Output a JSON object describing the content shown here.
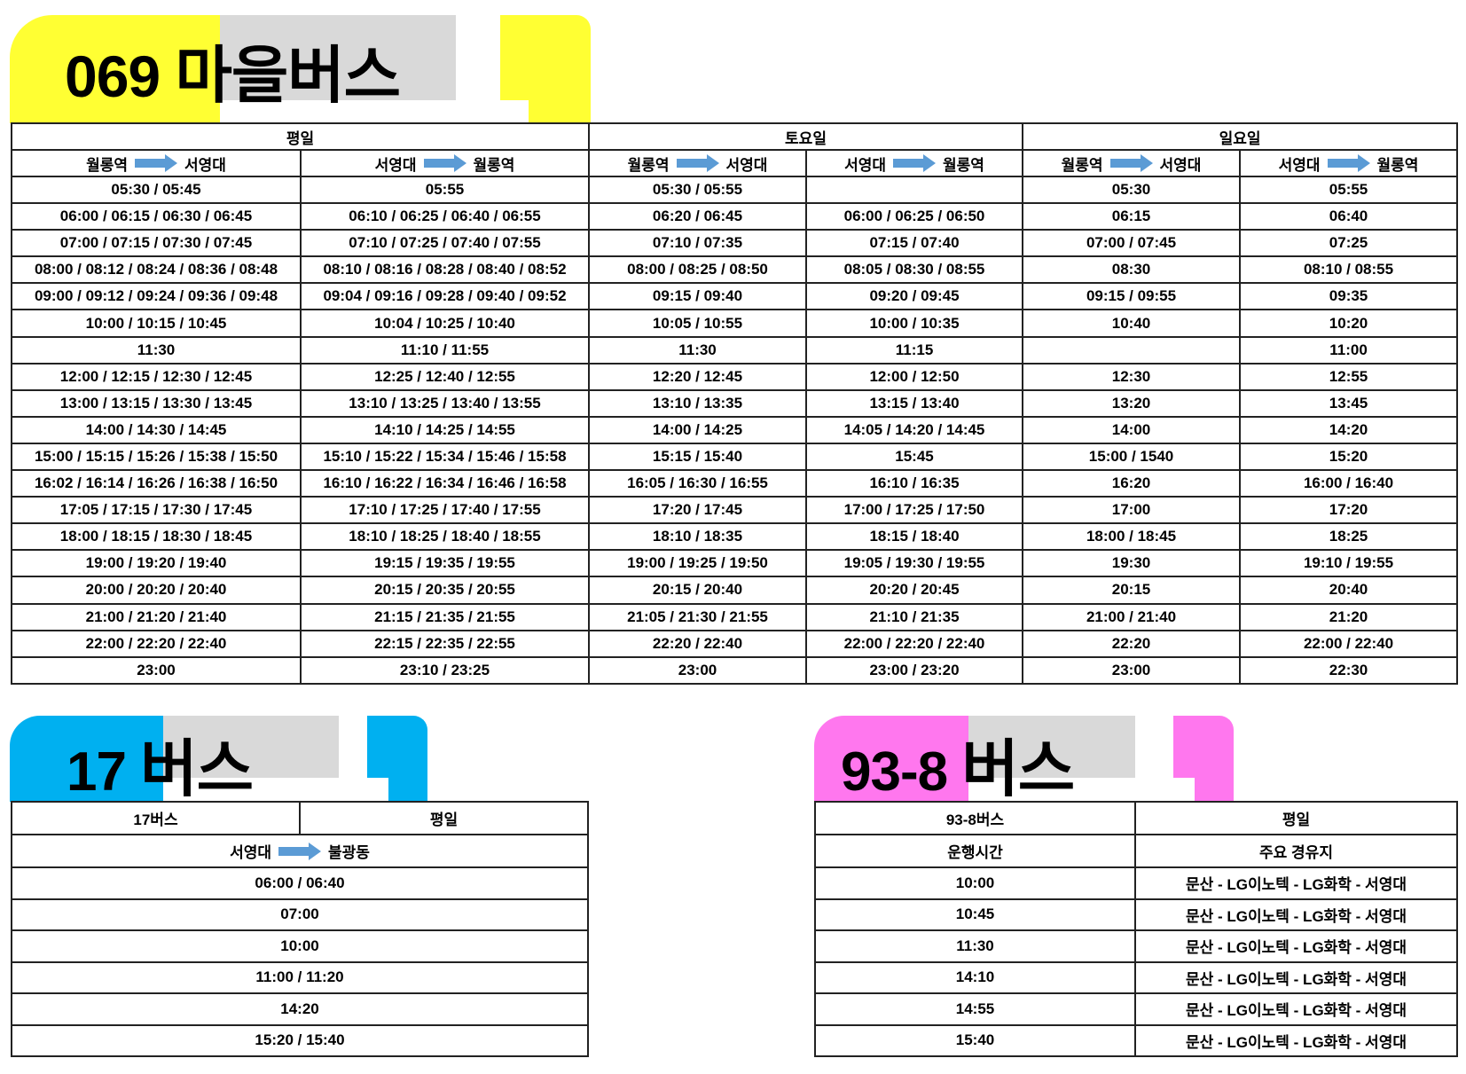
{
  "bus069": {
    "title_number": "069",
    "title_text": "마을버스",
    "accent": "#ffff33",
    "day_headers": [
      "평일",
      "토요일",
      "일요일"
    ],
    "directions": [
      {
        "from": "월롱역",
        "to": "서영대"
      },
      {
        "from": "서영대",
        "to": "월롱역"
      },
      {
        "from": "월롱역",
        "to": "서영대"
      },
      {
        "from": "서영대",
        "to": "월롱역"
      },
      {
        "from": "월롱역",
        "to": "서영대"
      },
      {
        "from": "서영대",
        "to": "월롱역"
      }
    ],
    "rows": [
      [
        "05:30 / 05:45",
        "05:55",
        "05:30 / 05:55",
        "",
        "05:30",
        "05:55"
      ],
      [
        "06:00 / 06:15 / 06:30 / 06:45",
        "06:10 / 06:25 / 06:40 / 06:55",
        "06:20 / 06:45",
        "06:00 / 06:25 / 06:50",
        "06:15",
        "06:40"
      ],
      [
        "07:00 / 07:15 / 07:30 / 07:45",
        "07:10 / 07:25 / 07:40 / 07:55",
        "07:10 / 07:35",
        "07:15 / 07:40",
        "07:00 / 07:45",
        "07:25"
      ],
      [
        "08:00 / 08:12 / 08:24 / 08:36 / 08:48",
        "08:10 / 08:16 / 08:28 / 08:40 / 08:52",
        "08:00 / 08:25 / 08:50",
        "08:05 / 08:30 / 08:55",
        "08:30",
        "08:10 / 08:55"
      ],
      [
        "09:00 / 09:12 / 09:24 / 09:36 / 09:48",
        "09:04 / 09:16 / 09:28 / 09:40 / 09:52",
        "09:15 / 09:40",
        "09:20 / 09:45",
        "09:15 / 09:55",
        "09:35"
      ],
      [
        "10:00 / 10:15 / 10:45",
        "10:04 / 10:25 / 10:40",
        "10:05 / 10:55",
        "10:00 / 10:35",
        "10:40",
        "10:20"
      ],
      [
        "11:30",
        "11:10 / 11:55",
        "11:30",
        "11:15",
        "",
        "11:00"
      ],
      [
        "12:00 / 12:15 / 12:30 / 12:45",
        "12:25 / 12:40 / 12:55",
        "12:20 / 12:45",
        "12:00 / 12:50",
        "12:30",
        "12:55"
      ],
      [
        "13:00 / 13:15 / 13:30 / 13:45",
        "13:10 / 13:25 / 13:40 / 13:55",
        "13:10 / 13:35",
        "13:15 / 13:40",
        "13:20",
        "13:45"
      ],
      [
        "14:00 / 14:30 / 14:45",
        "14:10 / 14:25 / 14:55",
        "14:00 / 14:25",
        "14:05 / 14:20 / 14:45",
        "14:00",
        "14:20"
      ],
      [
        "15:00 / 15:15 / 15:26 / 15:38 / 15:50",
        "15:10 / 15:22 / 15:34 / 15:46 / 15:58",
        "15:15 / 15:40",
        "15:45",
        "15:00 / 1540",
        "15:20"
      ],
      [
        "16:02 / 16:14 / 16:26 / 16:38 / 16:50",
        "16:10 / 16:22 / 16:34 / 16:46 / 16:58",
        "16:05 / 16:30 / 16:55",
        "16:10 / 16:35",
        "16:20",
        "16:00 / 16:40"
      ],
      [
        "17:05 / 17:15 / 17:30 / 17:45",
        "17:10 / 17:25 / 17:40 / 17:55",
        "17:20 / 17:45",
        "17:00 / 17:25 / 17:50",
        "17:00",
        "17:20"
      ],
      [
        "18:00 / 18:15 / 18:30 / 18:45",
        "18:10 / 18:25 / 18:40 / 18:55",
        "18:10 / 18:35",
        "18:15 / 18:40",
        "18:00 / 18:45",
        "18:25"
      ],
      [
        "19:00 / 19:20 / 19:40",
        "19:15 / 19:35 / 19:55",
        "19:00 / 19:25 / 19:50",
        "19:05 / 19:30 / 19:55",
        "19:30",
        "19:10 / 19:55"
      ],
      [
        "20:00 / 20:20 / 20:40",
        "20:15 / 20:35 / 20:55",
        "20:15 / 20:40",
        "20:20 / 20:45",
        "20:15",
        "20:40"
      ],
      [
        "21:00 / 21:20 / 21:40",
        "21:15 / 21:35 / 21:55",
        "21:05 / 21:30 / 21:55",
        "21:10 / 21:35",
        "21:00 / 21:40",
        "21:20"
      ],
      [
        "22:00 / 22:20 / 22:40",
        "22:15 / 22:35 / 22:55",
        "22:20 / 22:40",
        "22:00 / 22:20 / 22:40",
        "22:20",
        "22:00 / 22:40"
      ],
      [
        "23:00",
        "23:10 / 23:25",
        "23:00",
        "23:00 / 23:20",
        "23:00",
        "22:30"
      ]
    ]
  },
  "bus17": {
    "title_number": "17",
    "title_text": "버스",
    "accent": "#00b0f0",
    "name_cell": "17버스",
    "day_cell": "평일",
    "direction": {
      "from": "서영대",
      "to": "불광동"
    },
    "rows": [
      "06:00 / 06:40",
      "07:00",
      "10:00",
      "11:00 / 11:20",
      "14:20",
      "15:20 / 15:40"
    ]
  },
  "bus938": {
    "title_number": "93-8",
    "title_text": "버스",
    "accent": "#ff77ee",
    "name_cell": "93-8버스",
    "day_cell": "평일",
    "col_headers": [
      "운행시간",
      "주요 경유지"
    ],
    "rows": [
      [
        "10:00",
        "문산  -  LG이노텍 - LG화학 - 서영대"
      ],
      [
        "10:45",
        "문산  -  LG이노텍 - LG화학 - 서영대"
      ],
      [
        "11:30",
        "문산  -  LG이노텍 - LG화학 - 서영대"
      ],
      [
        "14:10",
        "문산  -  LG이노텍 - LG화학 - 서영대"
      ],
      [
        "14:55",
        "문산  -  LG이노텍 - LG화학 - 서영대"
      ],
      [
        "15:40",
        "문산  -  LG이노텍 - LG화학 - 서영대"
      ]
    ]
  },
  "arrow_color": "#5b9bd5"
}
